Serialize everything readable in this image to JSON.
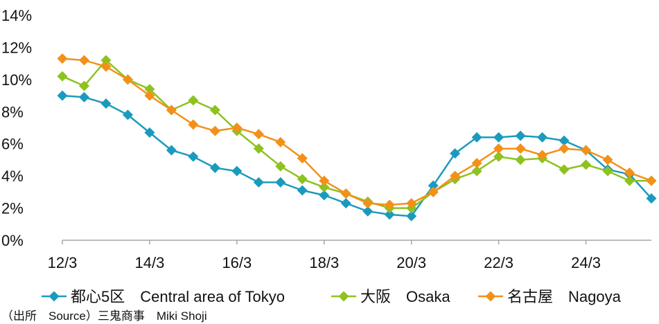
{
  "chart_data": {
    "type": "line",
    "title": "",
    "xlabel": "",
    "ylabel": "",
    "ylim": [
      0,
      14
    ],
    "y_ticks": [
      "0%",
      "2%",
      "4%",
      "6%",
      "8%",
      "10%",
      "12%",
      "14%"
    ],
    "x_tick_labels": [
      "12/3",
      "14/3",
      "16/3",
      "18/3",
      "20/3",
      "22/3",
      "24/3"
    ],
    "x": [
      "12/3",
      "12/9",
      "13/3",
      "13/9",
      "14/3",
      "14/9",
      "15/3",
      "15/9",
      "16/3",
      "16/9",
      "17/3",
      "17/9",
      "18/3",
      "18/9",
      "19/3",
      "19/9",
      "20/3",
      "20/9",
      "21/3",
      "21/9",
      "22/3",
      "22/9",
      "23/3",
      "23/9",
      "24/3",
      "24/9",
      "25/3",
      "25/9"
    ],
    "grid": false,
    "legend_position": "bottom",
    "series": [
      {
        "name": "都心5区　Central area of Tokyo",
        "color": "#1a9bbd",
        "values": [
          9.0,
          8.9,
          8.5,
          7.8,
          6.7,
          5.6,
          5.2,
          4.5,
          4.3,
          3.6,
          3.6,
          3.1,
          2.8,
          2.3,
          1.8,
          1.6,
          1.5,
          3.4,
          5.4,
          6.4,
          6.4,
          6.5,
          6.4,
          6.2,
          5.6,
          4.4,
          4.1,
          2.6
        ]
      },
      {
        "name": "大阪　Osaka",
        "color": "#8dc21f",
        "values": [
          10.2,
          9.6,
          11.2,
          10.0,
          9.4,
          8.1,
          8.7,
          8.1,
          6.8,
          5.7,
          4.6,
          3.8,
          3.3,
          2.9,
          2.4,
          2.0,
          2.0,
          3.0,
          3.8,
          4.3,
          5.2,
          5.0,
          5.1,
          4.4,
          4.7,
          4.3,
          3.7,
          3.7
        ]
      },
      {
        "name": "名古屋　Nagoya",
        "color": "#f39019",
        "values": [
          11.3,
          11.2,
          10.8,
          10.0,
          9.0,
          8.1,
          7.2,
          6.8,
          7.0,
          6.6,
          6.1,
          5.1,
          3.7,
          2.9,
          2.3,
          2.2,
          2.3,
          3.0,
          4.0,
          4.8,
          5.7,
          5.7,
          5.3,
          5.7,
          5.6,
          5.0,
          4.2,
          3.7
        ]
      }
    ]
  },
  "source": "（出所　Source）三鬼商事　Miki Shoji"
}
